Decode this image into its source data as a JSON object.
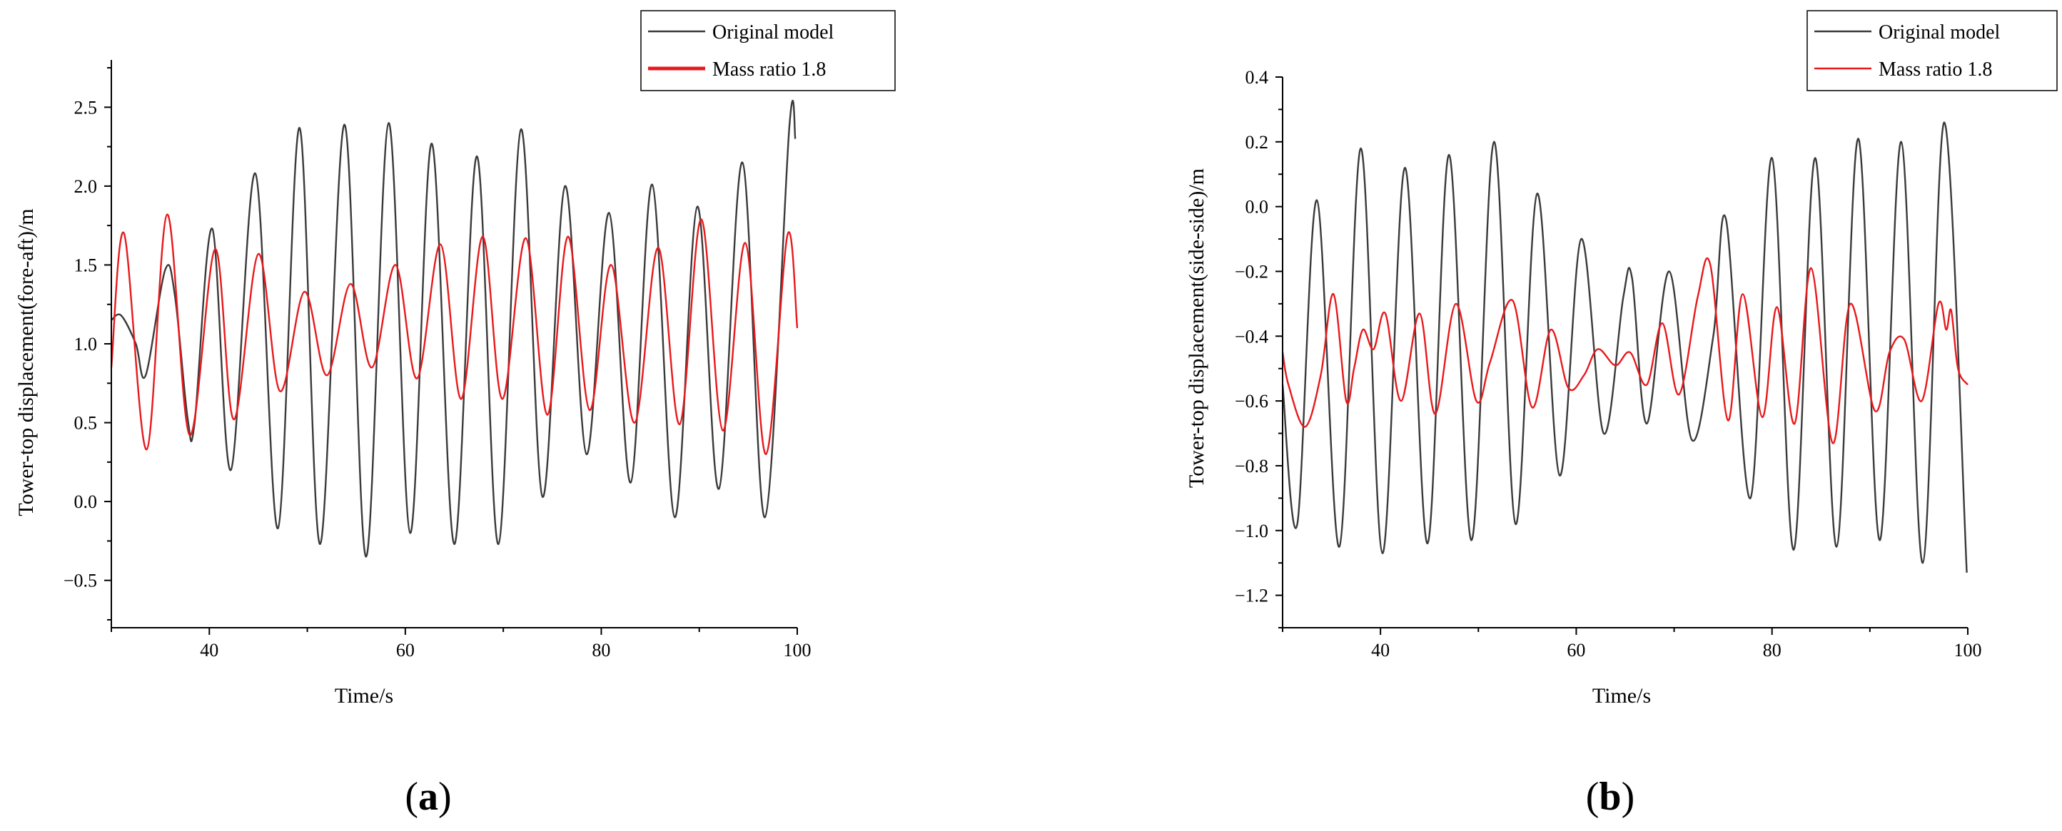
{
  "chart_data": [
    {
      "type": "line",
      "panel_label": "a",
      "xlabel": "Time/s",
      "ylabel": "Tower-top displacement(fore-aft)/m",
      "xlim": [
        30,
        100
      ],
      "ylim": [
        -0.8,
        2.8
      ],
      "xticks": [
        40,
        60,
        80,
        100
      ],
      "yticks": [
        -0.5,
        0.0,
        0.5,
        1.0,
        1.5,
        2.0,
        2.5
      ],
      "ytick_labels": [
        "−0.5",
        "0.0",
        "0.5",
        "1.0",
        "1.5",
        "2.0",
        "2.5"
      ],
      "grid": false,
      "legend_position": "top-right",
      "series": [
        {
          "name": "Original model",
          "color": "#3a3a3a",
          "x": [
            30,
            31,
            32.5,
            33.5,
            35.5,
            36.5,
            37.8,
            38.5,
            40.3,
            42.2,
            44.7,
            47.0,
            49.2,
            51.3,
            53.8,
            56.0,
            58.3,
            60.5,
            62.7,
            65.0,
            67.3,
            69.5,
            71.8,
            74.0,
            76.3,
            78.5,
            80.8,
            83.0,
            85.2,
            87.5,
            89.8,
            92.0,
            94.4,
            96.7,
            99.2,
            99.8
          ],
          "y": [
            1.15,
            1.18,
            1.0,
            0.8,
            1.47,
            1.3,
            0.52,
            0.5,
            1.73,
            0.2,
            2.08,
            -0.17,
            2.37,
            -0.27,
            2.39,
            -0.35,
            2.4,
            -0.2,
            2.27,
            -0.27,
            2.19,
            -0.27,
            2.36,
            0.03,
            2.0,
            0.3,
            1.83,
            0.12,
            2.01,
            -0.1,
            1.87,
            0.08,
            2.15,
            -0.1,
            2.38,
            2.3
          ]
        },
        {
          "name": "Mass ratio 1.8",
          "color": "#e8191c",
          "x": [
            30,
            31.3,
            33.6,
            35.7,
            38.0,
            40.6,
            42.5,
            45.0,
            47.2,
            49.7,
            52.0,
            54.4,
            56.6,
            59.0,
            61.2,
            63.6,
            65.7,
            67.9,
            69.9,
            72.3,
            74.5,
            76.6,
            78.8,
            81.0,
            83.4,
            85.8,
            88.0,
            90.2,
            92.4,
            94.7,
            96.8,
            99.0,
            100
          ],
          "y": [
            0.85,
            1.7,
            0.33,
            1.82,
            0.42,
            1.6,
            0.52,
            1.57,
            0.7,
            1.33,
            0.8,
            1.38,
            0.85,
            1.5,
            0.78,
            1.63,
            0.65,
            1.68,
            0.65,
            1.67,
            0.55,
            1.68,
            0.58,
            1.5,
            0.5,
            1.61,
            0.49,
            1.79,
            0.45,
            1.64,
            0.3,
            1.69,
            1.1
          ]
        }
      ]
    },
    {
      "type": "line",
      "panel_label": "b",
      "xlabel": "Time/s",
      "ylabel": "Tower-top displacement(side-side)/m",
      "xlim": [
        30,
        100
      ],
      "ylim": [
        -1.3,
        0.4
      ],
      "xticks": [
        40,
        60,
        80,
        100
      ],
      "yticks": [
        -1.2,
        -1.0,
        -0.8,
        -0.6,
        -0.4,
        -0.2,
        0.0,
        0.2,
        0.4
      ],
      "ytick_labels": [
        "−1.2",
        "−1.0",
        "−0.8",
        "−0.6",
        "−0.4",
        "−0.2",
        "0.0",
        "0.2",
        "0.4"
      ],
      "grid": false,
      "legend_position": "top-right",
      "series": [
        {
          "name": "Original model",
          "color": "#3a3a3a",
          "x": [
            30,
            31.5,
            33.5,
            35.8,
            38.0,
            40.2,
            42.5,
            44.8,
            47.0,
            49.3,
            51.6,
            53.8,
            56.0,
            58.3,
            60.5,
            62.8,
            64.8,
            65.7,
            67.2,
            69.5,
            71.8,
            74.0,
            75.3,
            77.8,
            80.0,
            82.2,
            84.4,
            86.6,
            88.8,
            91.0,
            93.2,
            95.4,
            97.6,
            99.9
          ],
          "y": [
            -0.55,
            -0.98,
            0.02,
            -1.05,
            0.18,
            -1.07,
            0.12,
            -1.04,
            0.16,
            -1.03,
            0.2,
            -0.98,
            0.04,
            -0.83,
            -0.1,
            -0.7,
            -0.28,
            -0.22,
            -0.67,
            -0.2,
            -0.72,
            -0.4,
            -0.04,
            -0.9,
            0.15,
            -1.06,
            0.15,
            -1.05,
            0.21,
            -1.03,
            0.2,
            -1.1,
            0.26,
            -1.13
          ]
        },
        {
          "name": "Mass ratio 1.8",
          "color": "#e8191c",
          "x": [
            30,
            30.6,
            32.3,
            33.9,
            35.2,
            36.5,
            37.3,
            38.2,
            39.3,
            40.5,
            42.1,
            44.0,
            45.6,
            47.7,
            49.8,
            51.2,
            53.5,
            55.5,
            57.4,
            59.2,
            60.8,
            62.2,
            64.0,
            65.5,
            67.2,
            68.8,
            70.5,
            72.4,
            73.7,
            75.5,
            77.0,
            79.0,
            80.5,
            82.3,
            84.0,
            86.2,
            88.0,
            90.5,
            92.0,
            93.5,
            95.3,
            97.0,
            97.8,
            98.3,
            99.0,
            100
          ],
          "y": [
            -0.45,
            -0.55,
            -0.68,
            -0.52,
            -0.27,
            -0.6,
            -0.5,
            -0.38,
            -0.44,
            -0.33,
            -0.6,
            -0.33,
            -0.64,
            -0.3,
            -0.6,
            -0.48,
            -0.29,
            -0.62,
            -0.38,
            -0.56,
            -0.52,
            -0.44,
            -0.49,
            -0.45,
            -0.55,
            -0.36,
            -0.58,
            -0.28,
            -0.18,
            -0.66,
            -0.27,
            -0.65,
            -0.31,
            -0.67,
            -0.19,
            -0.73,
            -0.3,
            -0.63,
            -0.45,
            -0.41,
            -0.6,
            -0.3,
            -0.38,
            -0.32,
            -0.5,
            -0.55
          ]
        }
      ]
    }
  ]
}
